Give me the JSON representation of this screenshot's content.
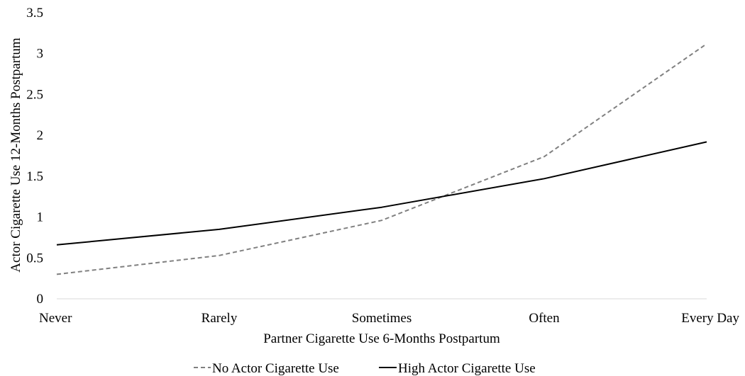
{
  "chart_data": {
    "type": "line",
    "categories": [
      "Never",
      "Rarely",
      "Sometimes",
      "Often",
      "Every Day"
    ],
    "xlabel": "Partner Cigarette Use 6-Months Postpartum",
    "ylabel": "Actor Cigarette Use 12-Months Postpartum",
    "ylim": [
      0,
      3.5
    ],
    "yticks": [
      "0",
      "0.5",
      "1",
      "1.5",
      "2",
      "2.5",
      "3",
      "3.5"
    ],
    "grid": false,
    "legend_position": "bottom",
    "series": [
      {
        "name": "No Actor Cigarette Use",
        "values": [
          0.3,
          0.53,
          0.96,
          1.74,
          3.12
        ],
        "color": "#808080",
        "style": "dashed"
      },
      {
        "name": "High Actor Cigarette Use",
        "values": [
          0.66,
          0.85,
          1.12,
          1.47,
          1.92
        ],
        "color": "#000000",
        "style": "solid"
      }
    ]
  }
}
